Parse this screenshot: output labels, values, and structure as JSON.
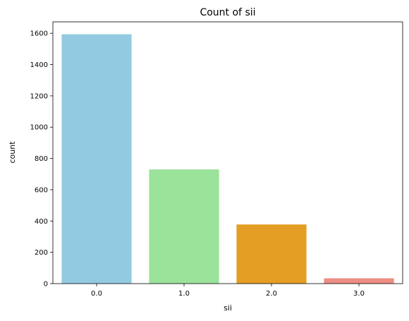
{
  "chart_data": {
    "type": "bar",
    "title": "Count of sii",
    "xlabel": "sii",
    "ylabel": "count",
    "categories": [
      "0.0",
      "1.0",
      "2.0",
      "3.0"
    ],
    "values": [
      1594,
      730,
      378,
      34
    ],
    "colors": [
      "#92CBE1",
      "#9BE29B",
      "#E49E23",
      "#ED8D83"
    ],
    "ylim": [
      0,
      1673
    ],
    "yticks": [
      0,
      200,
      400,
      600,
      800,
      1000,
      1200,
      1400,
      1600
    ],
    "grid": false,
    "legend": "none"
  }
}
